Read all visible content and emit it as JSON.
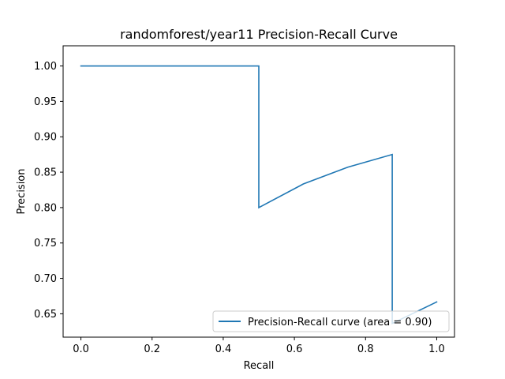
{
  "chart_data": {
    "type": "line",
    "title": "randomforest/year11 Precision-Recall Curve",
    "xlabel": "Recall",
    "ylabel": "Precision",
    "xlim": [
      -0.05,
      1.05
    ],
    "ylim": [
      0.617,
      1.0285
    ],
    "xticks": [
      0.0,
      0.2,
      0.4,
      0.6,
      0.8,
      1.0
    ],
    "xtick_labels": [
      "0.0",
      "0.2",
      "0.4",
      "0.6",
      "0.8",
      "1.0"
    ],
    "yticks": [
      0.65,
      0.7,
      0.75,
      0.8,
      0.85,
      0.9,
      0.95,
      1.0
    ],
    "ytick_labels": [
      "0.65",
      "0.70",
      "0.75",
      "0.80",
      "0.85",
      "0.90",
      "0.95",
      "1.00"
    ],
    "grid": false,
    "legend_position": "lower-right",
    "series": [
      {
        "name": "Precision-Recall curve (area = 0.90)",
        "color": "#1f77b4",
        "x": [
          0.0,
          0.5,
          0.5,
          0.625,
          0.75,
          0.875,
          0.875,
          1.0
        ],
        "y": [
          1.0,
          1.0,
          0.8,
          0.8333,
          0.8571,
          0.875,
          0.6364,
          0.6667
        ]
      }
    ]
  }
}
